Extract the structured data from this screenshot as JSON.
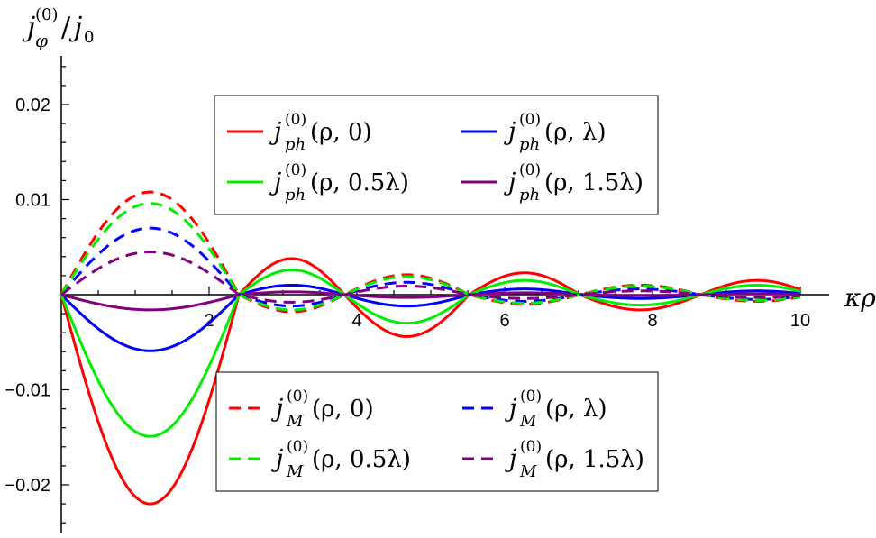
{
  "chart_data": {
    "type": "line",
    "ylabel": "j_φ^(0)/j_0",
    "xlabel": "κρ",
    "xlim": [
      0,
      10.2
    ],
    "ylim": [
      -0.0245,
      0.0245
    ],
    "x_ticks": [
      2,
      4,
      6,
      8,
      10
    ],
    "x_tick_labels": [
      "2",
      "4",
      "6",
      "8",
      "10"
    ],
    "y_ticks": [
      0.02,
      0.01,
      -0.01,
      -0.02
    ],
    "y_tick_labels": [
      "0.02",
      "0.01",
      "−0.01",
      "−0.02"
    ],
    "grid": false,
    "zeros": [
      0,
      2.405,
      3.832,
      5.52,
      7.016,
      8.654,
      10.173
    ],
    "series": [
      {
        "name": "j_ph^(0)(ρ,0)",
        "color": "#ff0000",
        "dash": "solid",
        "lobe_values": [
          -0.022,
          0.0038,
          -0.0044,
          0.0023,
          -0.0016,
          0.0015
        ]
      },
      {
        "name": "j_ph^(0)(ρ,λ)",
        "color": "#0000ff",
        "dash": "solid",
        "lobe_values": [
          -0.0059,
          0.001,
          -0.0012,
          0.0006,
          -0.0004,
          0.0004
        ]
      },
      {
        "name": "j_ph^(0)(ρ,0.5λ)",
        "color": "#00ee00",
        "dash": "solid",
        "lobe_values": [
          -0.0149,
          0.0026,
          -0.003,
          0.0015,
          -0.0011,
          0.001
        ]
      },
      {
        "name": "j_ph^(0)(ρ,1.5λ)",
        "color": "#800080",
        "dash": "solid",
        "lobe_values": [
          -0.0016,
          0.0003,
          -0.0003,
          0.0002,
          -0.0001,
          0.0001
        ]
      },
      {
        "name": "j_M^(0)(ρ,0)",
        "color": "#ff0000",
        "dash": "dashed",
        "lobe_values": [
          0.0108,
          -0.0018,
          0.0021,
          -0.001,
          0.001,
          -0.0007
        ]
      },
      {
        "name": "j_M^(0)(ρ,λ)",
        "color": "#0000ff",
        "dash": "dashed",
        "lobe_values": [
          0.007,
          -0.0012,
          0.0013,
          -0.0007,
          0.0006,
          -0.0005
        ]
      },
      {
        "name": "j_M^(0)(ρ,0.5λ)",
        "color": "#00ee00",
        "dash": "dashed",
        "lobe_values": [
          0.0096,
          -0.0016,
          0.0019,
          -0.0009,
          0.0009,
          -0.0006
        ]
      },
      {
        "name": "j_M^(0)(ρ,1.5λ)",
        "color": "#800080",
        "dash": "dashed",
        "lobe_values": [
          0.0045,
          -0.0008,
          0.0009,
          -0.0004,
          0.0004,
          -0.0003
        ]
      }
    ],
    "legend_top": [
      {
        "label_main": "j",
        "sup": "(0)",
        "sub": "ph",
        "args": "(ρ, 0)",
        "color": "#ff0000",
        "dash": "solid"
      },
      {
        "label_main": "j",
        "sup": "(0)",
        "sub": "ph",
        "args": "(ρ, λ)",
        "color": "#0000ff",
        "dash": "solid"
      },
      {
        "label_main": "j",
        "sup": "(0)",
        "sub": "ph",
        "args": "(ρ, 0.5λ)",
        "color": "#00ee00",
        "dash": "solid"
      },
      {
        "label_main": "j",
        "sup": "(0)",
        "sub": "ph",
        "args": "(ρ, 1.5λ)",
        "color": "#800080",
        "dash": "solid"
      }
    ],
    "legend_bottom": [
      {
        "label_main": "j",
        "sup": "(0)",
        "sub": "M",
        "args": "(ρ, 0)",
        "color": "#ff0000",
        "dash": "dashed"
      },
      {
        "label_main": "j",
        "sup": "(0)",
        "sub": "M",
        "args": "(ρ, λ)",
        "color": "#0000ff",
        "dash": "dashed"
      },
      {
        "label_main": "j",
        "sup": "(0)",
        "sub": "M",
        "args": "(ρ, 0.5λ)",
        "color": "#00ee00",
        "dash": "dashed"
      },
      {
        "label_main": "j",
        "sup": "(0)",
        "sub": "M",
        "args": "(ρ, 1.5λ)",
        "color": "#800080",
        "dash": "dashed"
      }
    ]
  }
}
